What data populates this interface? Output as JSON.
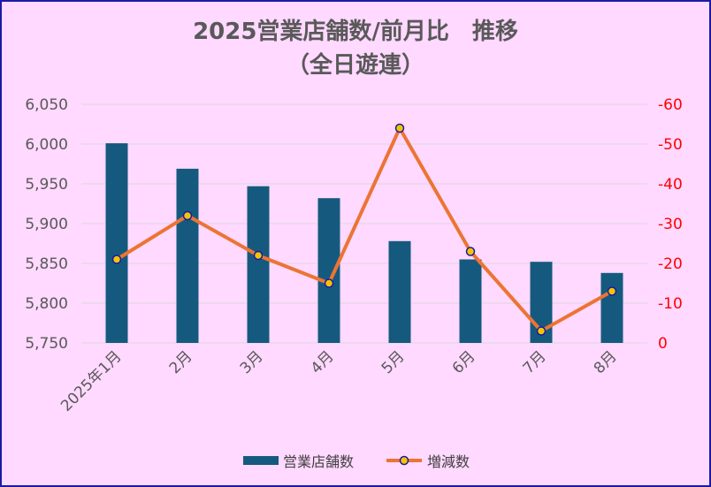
{
  "chart_data": {
    "type": "bar",
    "title_line1": "2025営業店舗数/前月比　推移",
    "title_line2": "（全日遊連）",
    "categories": [
      "2025年1月",
      "2月",
      "3月",
      "4月",
      "5月",
      "6月",
      "7月",
      "8月"
    ],
    "series": [
      {
        "name": "営業店舗数",
        "type": "bar",
        "axis": "left",
        "color": "#155a7e",
        "values": [
          6001,
          5969,
          5947,
          5932,
          5878,
          5855,
          5852,
          5838
        ]
      },
      {
        "name": "増減数",
        "type": "line",
        "axis": "right",
        "color": "#ec7434",
        "marker_fill": "#f5c400",
        "marker_edge": "#1a1aa6",
        "values": [
          -21,
          -32,
          -22,
          -15,
          -54,
          -23,
          -3,
          -13
        ]
      }
    ],
    "y_left": {
      "min": 5750,
      "max": 6050,
      "step": 50,
      "ticks": [
        "5,750",
        "5,800",
        "5,850",
        "5,900",
        "5,950",
        "6,000",
        "6,050"
      ]
    },
    "y_right": {
      "min": 0,
      "max": -60,
      "step": -10,
      "reversed": true,
      "ticks": [
        "0",
        "-10",
        "-20",
        "-30",
        "-40",
        "-50",
        "-60"
      ]
    },
    "grid": true,
    "legend_position": "bottom",
    "colors": {
      "background": "#ffd9ff",
      "border": "#1a1aa6",
      "gridline": "#d9d9d9",
      "right_axis_text": "#ff0000"
    }
  }
}
